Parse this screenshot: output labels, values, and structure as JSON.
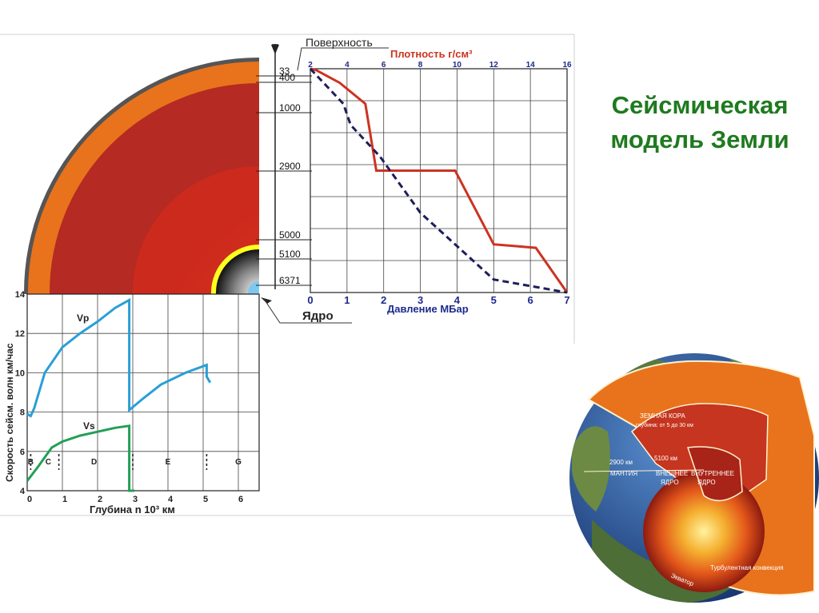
{
  "title_line1": "Сейсмическая",
  "title_line2": "модель Земли",
  "colors": {
    "title": "#1f7a1f",
    "density_line": "#cc3322",
    "pressure_line": "#1e1e5a",
    "vp_line": "#2a9fd6",
    "vs_line": "#22a055",
    "crust": "#555555",
    "upper_mantle": "#e8731c",
    "lower_mantle": "#b52a22",
    "outer_core": "#dc3324",
    "inner_core_ring": "#ffff22"
  },
  "earth_section": {
    "surface_label": "Поверхность",
    "core_label": "Ядро",
    "depth_labels": [
      "33",
      "400",
      "1000",
      "2900",
      "5000",
      "5100",
      "6371"
    ]
  },
  "chart_data": [
    {
      "type": "line",
      "top_axis_label": "Плотность г/см³",
      "bottom_axis_label": "Давление МБар",
      "top_ticks": [
        "2",
        "4",
        "6",
        "8",
        "10",
        "12",
        "14",
        "16"
      ],
      "bottom_ticks": [
        "0",
        "1",
        "2",
        "3",
        "4",
        "5",
        "6",
        "7"
      ],
      "y_axis": "depth_km",
      "y_range": [
        0,
        6371
      ],
      "series": [
        {
          "axis": "density",
          "points": [
            [
              2,
              0
            ],
            [
              2.3,
              33
            ],
            [
              3.6,
              400
            ],
            [
              5.0,
              1000
            ],
            [
              5.6,
              2900
            ],
            [
              9.9,
              2900
            ],
            [
              12.0,
              5000
            ],
            [
              14.3,
              5100
            ],
            [
              16.0,
              6371
            ]
          ]
        },
        {
          "axis": "pressure",
          "points": [
            [
              0,
              0
            ],
            [
              0.9,
              1000
            ],
            [
              1.1,
              1600
            ],
            [
              1.9,
              2500
            ],
            [
              3.0,
              4100
            ],
            [
              5.0,
              6000
            ],
            [
              7.0,
              6371
            ]
          ]
        }
      ]
    },
    {
      "type": "line",
      "ylabel": "Скорость сейсм. волн км/час",
      "xlabel": "Глубина n 10³ км",
      "x_ticks": [
        "0",
        "1",
        "2",
        "3",
        "4",
        "5",
        "6"
      ],
      "y_ticks": [
        "4",
        "6",
        "8",
        "10",
        "12",
        "14"
      ],
      "xlim": [
        0,
        6.37
      ],
      "ylim": [
        4,
        14
      ],
      "zones": [
        "B",
        "C",
        "D",
        "E",
        "G"
      ],
      "series": [
        {
          "name": "Vp",
          "points": [
            [
              0,
              7.9
            ],
            [
              0.1,
              7.8
            ],
            [
              0.2,
              8.2
            ],
            [
              0.5,
              10.0
            ],
            [
              1.0,
              11.3
            ],
            [
              1.5,
              12.0
            ],
            [
              2.0,
              12.6
            ],
            [
              2.5,
              13.3
            ],
            [
              2.9,
              13.7
            ],
            [
              2.9,
              8.1
            ],
            [
              3.3,
              8.7
            ],
            [
              3.8,
              9.4
            ],
            [
              4.5,
              10.0
            ],
            [
              5.1,
              10.4
            ],
            [
              5.1,
              9.8
            ],
            [
              5.2,
              9.5
            ]
          ]
        },
        {
          "name": "Vs",
          "points": [
            [
              0,
              4.5
            ],
            [
              0.3,
              5.2
            ],
            [
              0.7,
              6.2
            ],
            [
              1.0,
              6.5
            ],
            [
              1.5,
              6.8
            ],
            [
              2.0,
              7.0
            ],
            [
              2.5,
              7.2
            ],
            [
              2.9,
              7.3
            ],
            [
              2.9,
              4.0
            ],
            [
              3.05,
              4.0
            ]
          ]
        }
      ]
    }
  ],
  "globe": {
    "labels": [
      "ЗЕМНАЯ КОРА",
      "глубина: от 5 до 30 км",
      "2900 км",
      "5100 км",
      "МАНТИЯ",
      "ВНЕШНЕЕ",
      "ЯДРО",
      "ВНУТРЕННЕЕ",
      "ЯДРО",
      "Турбулентная конвекция",
      "Экватор"
    ]
  }
}
